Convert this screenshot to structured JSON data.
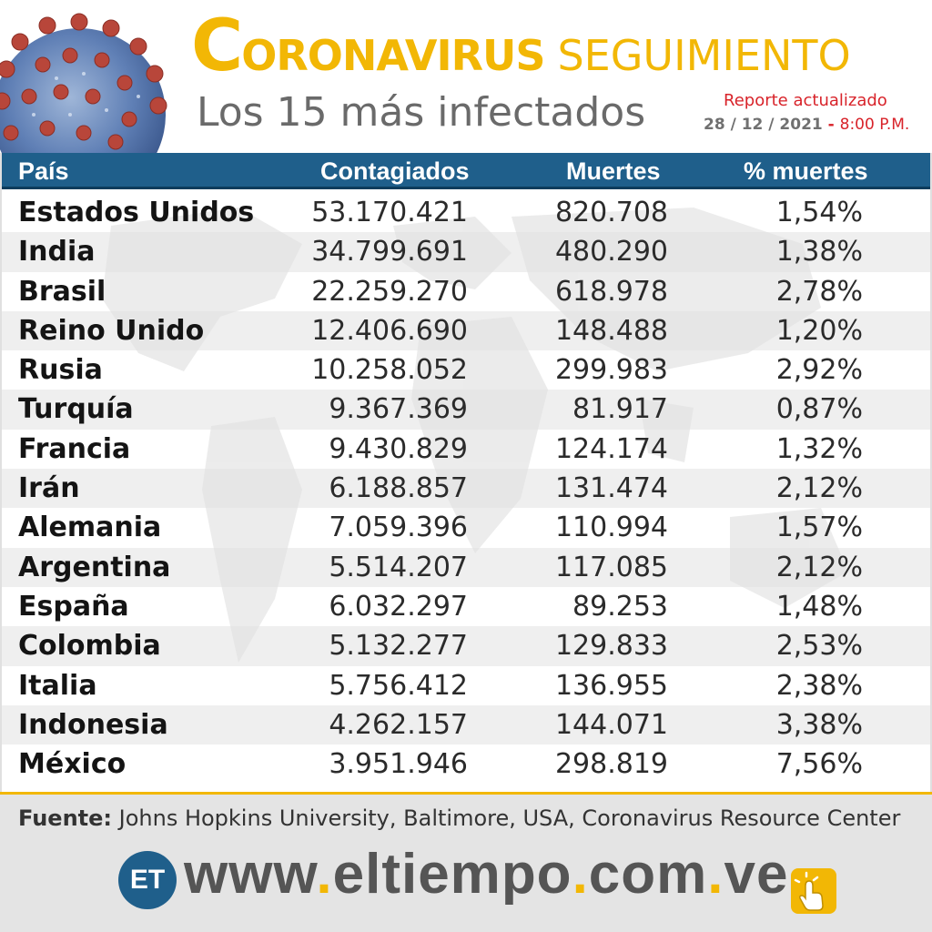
{
  "header": {
    "title_initial": "C",
    "title_rest": "ORONAVIRUS",
    "title_suffix": "SEGUIMIENTO",
    "subtitle": "Los 15 más infectados",
    "report_label": "Reporte actualizado",
    "report_date": "28 / 12 / 2021",
    "report_sep": " - ",
    "report_time": "8:00 P.M."
  },
  "chart_data": {
    "type": "table",
    "columns": [
      "País",
      "Contagiados",
      "Muertes",
      "% muertes"
    ],
    "rows": [
      [
        "Estados Unidos",
        "53.170.421",
        "820.708",
        "1,54%"
      ],
      [
        "India",
        "34.799.691",
        "480.290",
        "1,38%"
      ],
      [
        "Brasil",
        "22.259.270",
        "618.978",
        "2,78%"
      ],
      [
        "Reino Unido",
        "12.406.690",
        "148.488",
        "1,20%"
      ],
      [
        "Rusia",
        "10.258.052",
        "299.983",
        "2,92%"
      ],
      [
        "Turquía",
        "9.367.369",
        "81.917",
        "0,87%"
      ],
      [
        "Francia",
        "9.430.829",
        "124.174",
        "1,32%"
      ],
      [
        "Irán",
        "6.188.857",
        "131.474",
        "2,12%"
      ],
      [
        "Alemania",
        "7.059.396",
        "110.994",
        "1,57%"
      ],
      [
        "Argentina",
        "5.514.207",
        "117.085",
        "2,12%"
      ],
      [
        "España",
        "6.032.297",
        "89.253",
        "1,48%"
      ],
      [
        "Colombia",
        "5.132.277",
        "129.833",
        "2,53%"
      ],
      [
        "Italia",
        "5.756.412",
        "136.955",
        "2,38%"
      ],
      [
        "Indonesia",
        "4.262.157",
        "144.071",
        "3,38%"
      ],
      [
        "México",
        "3.951.946",
        "298.819",
        "7,56%"
      ]
    ]
  },
  "footer": {
    "source_label": "Fuente:",
    "source_text": " Johns Hopkins University, Baltimore, USA, Coronavirus Resource Center",
    "logo_text": "ET",
    "url_parts": [
      "www",
      ".",
      "eltiempo",
      ".",
      "com",
      ".",
      "ve"
    ]
  },
  "colors": {
    "title_yellow": "#f2b705",
    "header_blue": "#1f5f8b",
    "report_red": "#d8232a",
    "footer_gray": "#e4e4e4"
  },
  "icons": {
    "virus": "coronavirus-icon",
    "click": "pointing-hand-click-icon",
    "map": "world-map-background"
  }
}
